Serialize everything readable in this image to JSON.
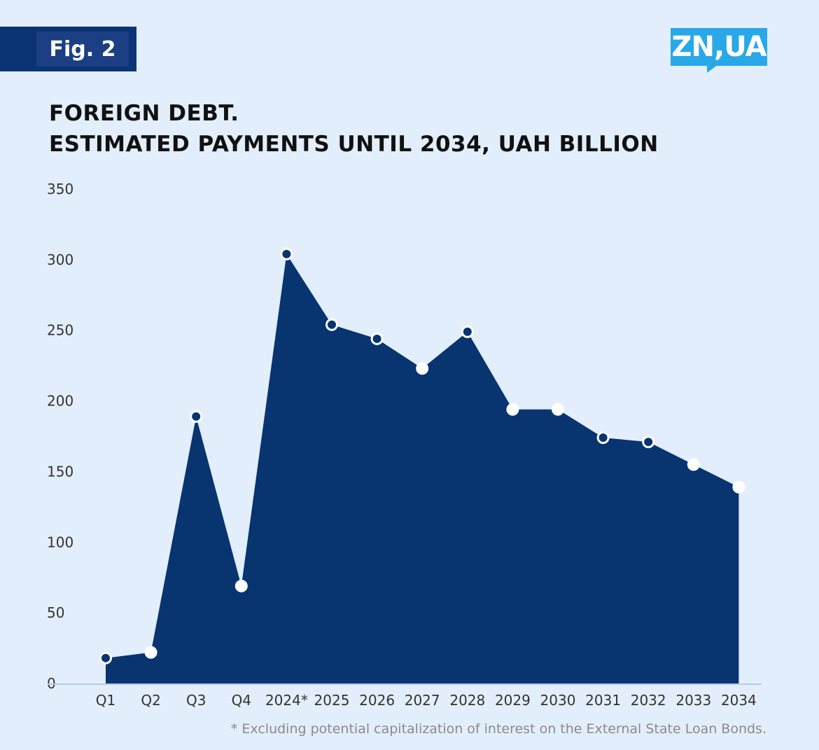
{
  "header": {
    "fig_label": "Fig. 2",
    "logo_text": "ZN,UA"
  },
  "chart_data": {
    "type": "area",
    "title_lines": [
      "FOREIGN DEBT.",
      "ESTIMATED PAYMENTS UNTIL 2034, UAH BILLION"
    ],
    "categories": [
      "Q1",
      "Q2",
      "Q3",
      "Q4",
      "2024*",
      "2025",
      "2026",
      "2027",
      "2028",
      "2029",
      "2030",
      "2031",
      "2032",
      "2033",
      "2034"
    ],
    "values": [
      18,
      22,
      189,
      69,
      304,
      254,
      244,
      223,
      249,
      194,
      194,
      174,
      171,
      155,
      139
    ],
    "marker_styles": [
      "filled",
      "hollow",
      "filled",
      "hollow",
      "filled",
      "filled",
      "filled",
      "hollow",
      "filled",
      "hollow",
      "hollow",
      "filled",
      "filled",
      "hollow",
      "hollow"
    ],
    "ylim": [
      0,
      350
    ],
    "yticks": [
      0,
      50,
      100,
      150,
      200,
      250,
      300,
      350
    ],
    "xlabel": "",
    "ylabel": "",
    "grid": false,
    "colors": {
      "area": "#083470",
      "marker_fill_filled": "#083470",
      "marker_fill_hollow": "#ffffff",
      "marker_stroke": "#ffffff",
      "axis": "#b7c9e6"
    }
  },
  "footnote": "* Excluding potential capitalization of interest on the External State Loan Bonds."
}
